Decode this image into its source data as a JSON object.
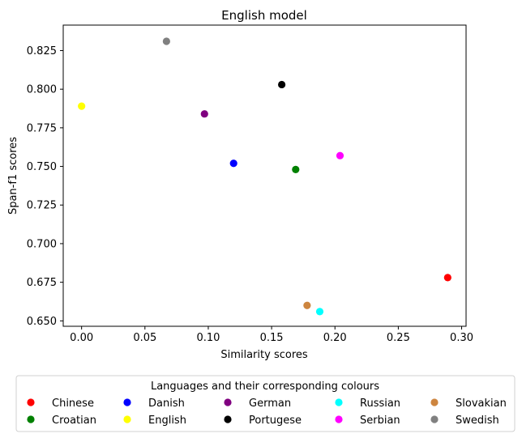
{
  "chart_data": {
    "type": "scatter",
    "title": "English model",
    "xlabel": "Similarity scores",
    "ylabel": "Span-f1 scores",
    "xlim": [
      -0.0145,
      0.3035
    ],
    "ylim": [
      0.6465,
      0.8415
    ],
    "xticks": [
      0.0,
      0.05,
      0.1,
      0.15,
      0.2,
      0.25,
      0.3
    ],
    "xtick_labels": [
      "0.00",
      "0.05",
      "0.10",
      "0.15",
      "0.20",
      "0.25",
      "0.30"
    ],
    "yticks": [
      0.65,
      0.675,
      0.7,
      0.725,
      0.75,
      0.775,
      0.8,
      0.825
    ],
    "ytick_labels": [
      "0.650",
      "0.675",
      "0.700",
      "0.725",
      "0.750",
      "0.775",
      "0.800",
      "0.825"
    ],
    "grid": false,
    "legend": {
      "title": "Languages and their corresponding colours",
      "position": "bottom-center",
      "columns": 5
    },
    "series": [
      {
        "name": "Chinese",
        "color": "#ff0000",
        "x": 0.289,
        "y": 0.678
      },
      {
        "name": "Croatian",
        "color": "#008000",
        "x": 0.169,
        "y": 0.748
      },
      {
        "name": "Danish",
        "color": "#0000ff",
        "x": 0.12,
        "y": 0.752
      },
      {
        "name": "English",
        "color": "#ffff00",
        "x": 0.0,
        "y": 0.789
      },
      {
        "name": "German",
        "color": "#800080",
        "x": 0.097,
        "y": 0.784
      },
      {
        "name": "Portugese",
        "color": "#000000",
        "x": 0.158,
        "y": 0.803
      },
      {
        "name": "Russian",
        "color": "#00ffff",
        "x": 0.188,
        "y": 0.656
      },
      {
        "name": "Serbian",
        "color": "#ff00ff",
        "x": 0.204,
        "y": 0.757
      },
      {
        "name": "Slovakian",
        "color": "#cd853f",
        "x": 0.178,
        "y": 0.66
      },
      {
        "name": "Swedish",
        "color": "#808080",
        "x": 0.067,
        "y": 0.831
      }
    ]
  }
}
